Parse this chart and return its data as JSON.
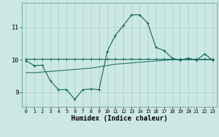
{
  "title": "",
  "xlabel": "Humidex (Indice chaleur)",
  "bg_color": "#cce8e4",
  "grid_color": "#aed4d0",
  "line_color": "#1a6b5e",
  "xlim": [
    -0.5,
    23.5
  ],
  "ylim": [
    8.55,
    11.75
  ],
  "yticks": [
    9,
    10,
    11
  ],
  "xticks": [
    0,
    1,
    2,
    3,
    4,
    5,
    6,
    7,
    8,
    9,
    10,
    11,
    12,
    13,
    14,
    15,
    16,
    17,
    18,
    19,
    20,
    21,
    22,
    23
  ],
  "line1_x": [
    0,
    1,
    2,
    3,
    4,
    5,
    6,
    7,
    8,
    9,
    10,
    11,
    12,
    13,
    14,
    15,
    16,
    17,
    18,
    19,
    20,
    21,
    22,
    23
  ],
  "line1_y": [
    9.97,
    9.82,
    9.83,
    9.35,
    9.08,
    9.08,
    8.78,
    9.08,
    9.1,
    9.08,
    10.25,
    10.75,
    11.05,
    11.38,
    11.38,
    11.12,
    10.38,
    10.28,
    10.05,
    9.98,
    10.05,
    9.98,
    10.18,
    9.98
  ],
  "line2_x": [
    0,
    1,
    2,
    3,
    4,
    5,
    6,
    7,
    8,
    9,
    10,
    11,
    12,
    13,
    14,
    15,
    16,
    17,
    18,
    19,
    20,
    21,
    22,
    23
  ],
  "line2_y": [
    10.02,
    10.02,
    10.02,
    10.02,
    10.02,
    10.02,
    10.02,
    10.02,
    10.02,
    10.02,
    10.02,
    10.02,
    10.02,
    10.02,
    10.02,
    10.02,
    10.02,
    10.02,
    10.02,
    10.02,
    10.02,
    10.02,
    10.02,
    10.02
  ],
  "line3_x": [
    0,
    1,
    2,
    3,
    4,
    5,
    6,
    7,
    8,
    9,
    10,
    11,
    12,
    13,
    14,
    15,
    16,
    17,
    18,
    19,
    20,
    21,
    22,
    23
  ],
  "line3_y": [
    9.6,
    9.6,
    9.62,
    9.64,
    9.66,
    9.68,
    9.7,
    9.72,
    9.74,
    9.78,
    9.82,
    9.86,
    9.88,
    9.9,
    9.92,
    9.94,
    9.96,
    9.98,
    10.0,
    10.0,
    10.0,
    10.0,
    10.0,
    10.0
  ]
}
